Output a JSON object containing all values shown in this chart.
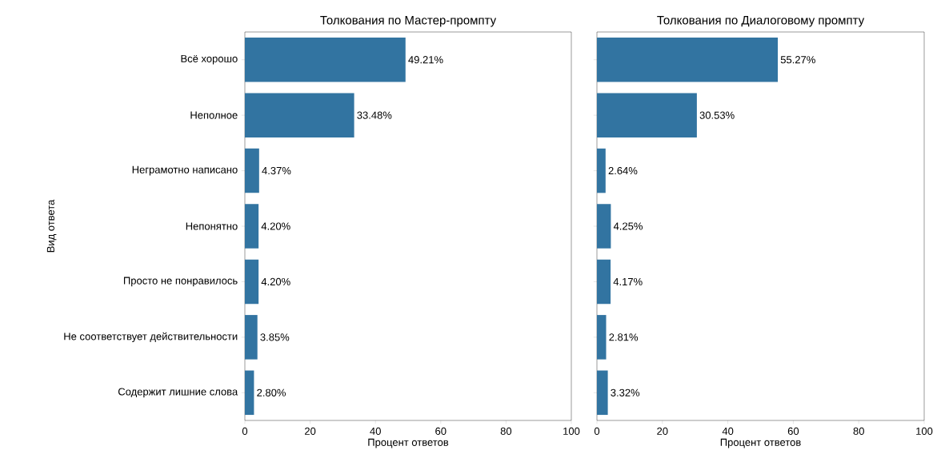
{
  "chart_data": [
    {
      "type": "bar",
      "orientation": "horizontal",
      "title": "Толкования по Мастер-промпту",
      "xlabel": "Процент ответов",
      "ylabel": "Вид ответа",
      "categories": [
        "Всё хорошо",
        "Неполное",
        "Неграмотно написано",
        "Непонятно",
        "Просто не понравилось",
        "Не соответствует действительности",
        "Содержит лишние слова"
      ],
      "values": [
        49.21,
        33.48,
        4.37,
        4.2,
        4.2,
        3.85,
        2.8
      ],
      "value_labels": [
        "49.21%",
        "33.48%",
        "4.37%",
        "4.20%",
        "4.20%",
        "3.85%",
        "2.80%"
      ],
      "color": "#3274a1",
      "xlim": [
        0,
        100
      ],
      "xticks": [
        0,
        20,
        40,
        60,
        80,
        100
      ]
    },
    {
      "type": "bar",
      "orientation": "horizontal",
      "title": "Толкования по Диалоговому промпту",
      "xlabel": "Процент ответов",
      "tick_labels": "x",
      "categories": [
        null,
        null,
        null,
        null,
        null,
        null,
        null
      ],
      "values": [
        55.27,
        30.53,
        2.64,
        4.25,
        4.17,
        2.81,
        3.32
      ],
      "value_labels": [
        "55.27%",
        "30.53%",
        "2.64%",
        "4.25%",
        "4.17%",
        "2.81%",
        "3.32%"
      ],
      "color": "#3274a1",
      "xlim": [
        0,
        100
      ],
      "xticks": [
        0,
        20,
        40,
        60,
        80,
        100
      ]
    }
  ]
}
